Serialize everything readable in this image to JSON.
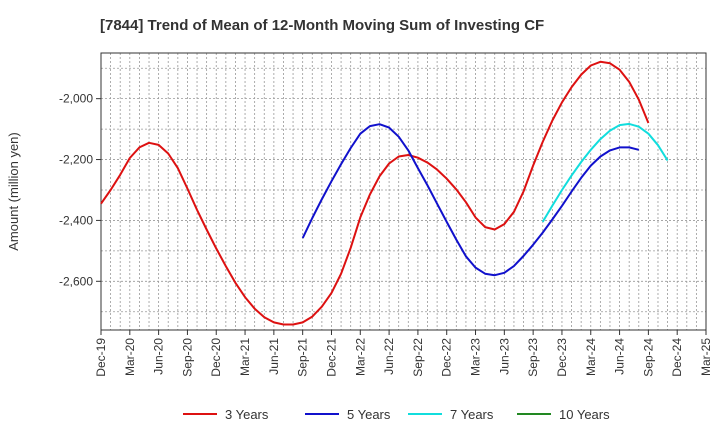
{
  "chart_data": {
    "type": "line",
    "title": "[7844]  Trend of Mean of 12-Month Moving Sum of Investing CF",
    "xlabel": "",
    "ylabel": "Amount (million yen)",
    "ylim": [
      -2760,
      -1850
    ],
    "yticks": [
      -2600,
      -2400,
      -2200,
      -2000
    ],
    "ytick_labels": [
      "-2,600",
      "-2,400",
      "-2,200",
      "-2,000"
    ],
    "x_tick_labels": [
      "Dec-19",
      "Mar-20",
      "Jun-20",
      "Sep-20",
      "Dec-20",
      "Mar-21",
      "Jun-21",
      "Sep-21",
      "Dec-21",
      "Mar-22",
      "Jun-22",
      "Sep-22",
      "Dec-22",
      "Mar-23",
      "Jun-23",
      "Sep-23",
      "Dec-23",
      "Mar-24",
      "Jun-24",
      "Sep-24",
      "Dec-24",
      "Mar-25"
    ],
    "x_range_months": [
      0,
      63
    ],
    "grid": true,
    "legend_position": "bottom",
    "series": [
      {
        "name": "3 Years",
        "color": "#dd1111",
        "start_month": 0,
        "values": [
          -2345,
          -2300,
          -2250,
          -2195,
          -2160,
          -2145,
          -2152,
          -2180,
          -2228,
          -2295,
          -2365,
          -2430,
          -2492,
          -2550,
          -2605,
          -2652,
          -2690,
          -2718,
          -2735,
          -2742,
          -2742,
          -2735,
          -2716,
          -2683,
          -2638,
          -2575,
          -2490,
          -2390,
          -2315,
          -2255,
          -2213,
          -2190,
          -2185,
          -2194,
          -2210,
          -2233,
          -2263,
          -2298,
          -2340,
          -2390,
          -2422,
          -2430,
          -2412,
          -2372,
          -2305,
          -2220,
          -2142,
          -2072,
          -2012,
          -1962,
          -1921,
          -1891,
          -1879,
          -1884,
          -1905,
          -1945,
          -2003,
          -2080
        ]
      },
      {
        "name": "5 Years",
        "color": "#1111cc",
        "start_month": 21,
        "values": [
          -2458,
          -2392,
          -2330,
          -2271,
          -2215,
          -2162,
          -2115,
          -2090,
          -2084,
          -2095,
          -2125,
          -2170,
          -2228,
          -2285,
          -2345,
          -2405,
          -2463,
          -2518,
          -2555,
          -2575,
          -2580,
          -2572,
          -2550,
          -2517,
          -2480,
          -2440,
          -2397,
          -2352,
          -2305,
          -2260,
          -2220,
          -2190,
          -2170,
          -2160,
          -2160,
          -2168
        ]
      },
      {
        "name": "7 Years",
        "color": "#11dddd",
        "start_month": 46,
        "values": [
          -2405,
          -2352,
          -2300,
          -2252,
          -2208,
          -2168,
          -2133,
          -2105,
          -2087,
          -2083,
          -2092,
          -2115,
          -2153,
          -2203
        ]
      },
      {
        "name": "10 Years",
        "color": "#228822",
        "start_month": 0,
        "values": []
      }
    ]
  }
}
